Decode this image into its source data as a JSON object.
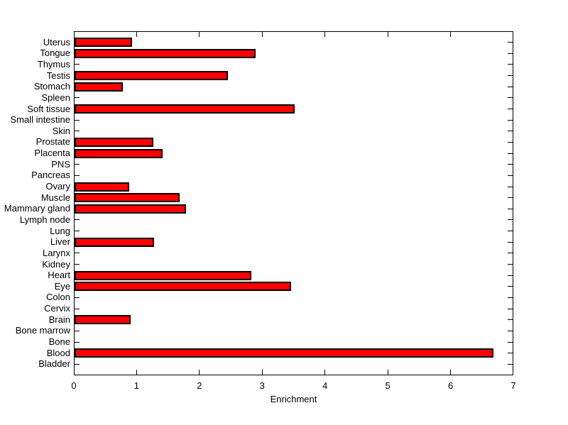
{
  "figure": {
    "background": "#ffffff"
  },
  "chart_data": {
    "type": "bar",
    "orientation": "horizontal",
    "title": "",
    "xlabel": "Enrichment",
    "ylabel": "",
    "xlim": [
      0,
      7
    ],
    "xticks": [
      0,
      1,
      2,
      3,
      4,
      5,
      6,
      7
    ],
    "grid": false,
    "legend": false,
    "bar_color": "#ff0000",
    "bar_edge_color": "#000000",
    "axis_color": "#000000",
    "categories": [
      "Uterus",
      "Tongue",
      "Thymus",
      "Testis",
      "Stomach",
      "Spleen",
      "Soft tissue",
      "Small intestine",
      "Skin",
      "Prostate",
      "Placenta",
      "PNS",
      "Pancreas",
      "Ovary",
      "Muscle",
      "Mammary gland",
      "Lymph node",
      "Lung",
      "Liver",
      "Larynx",
      "Kidney",
      "Heart",
      "Eye",
      "Colon",
      "Cervix",
      "Brain",
      "Bone marrow",
      "Bone",
      "Blood",
      "Bladder"
    ],
    "values": [
      0.92,
      2.88,
      0,
      2.44,
      0.77,
      0,
      3.5,
      0,
      0,
      1.25,
      1.4,
      0,
      0,
      0.87,
      1.67,
      1.78,
      0,
      0,
      1.27,
      0,
      0,
      2.82,
      3.45,
      0,
      0,
      0.89,
      0,
      0,
      6.67,
      0
    ]
  }
}
